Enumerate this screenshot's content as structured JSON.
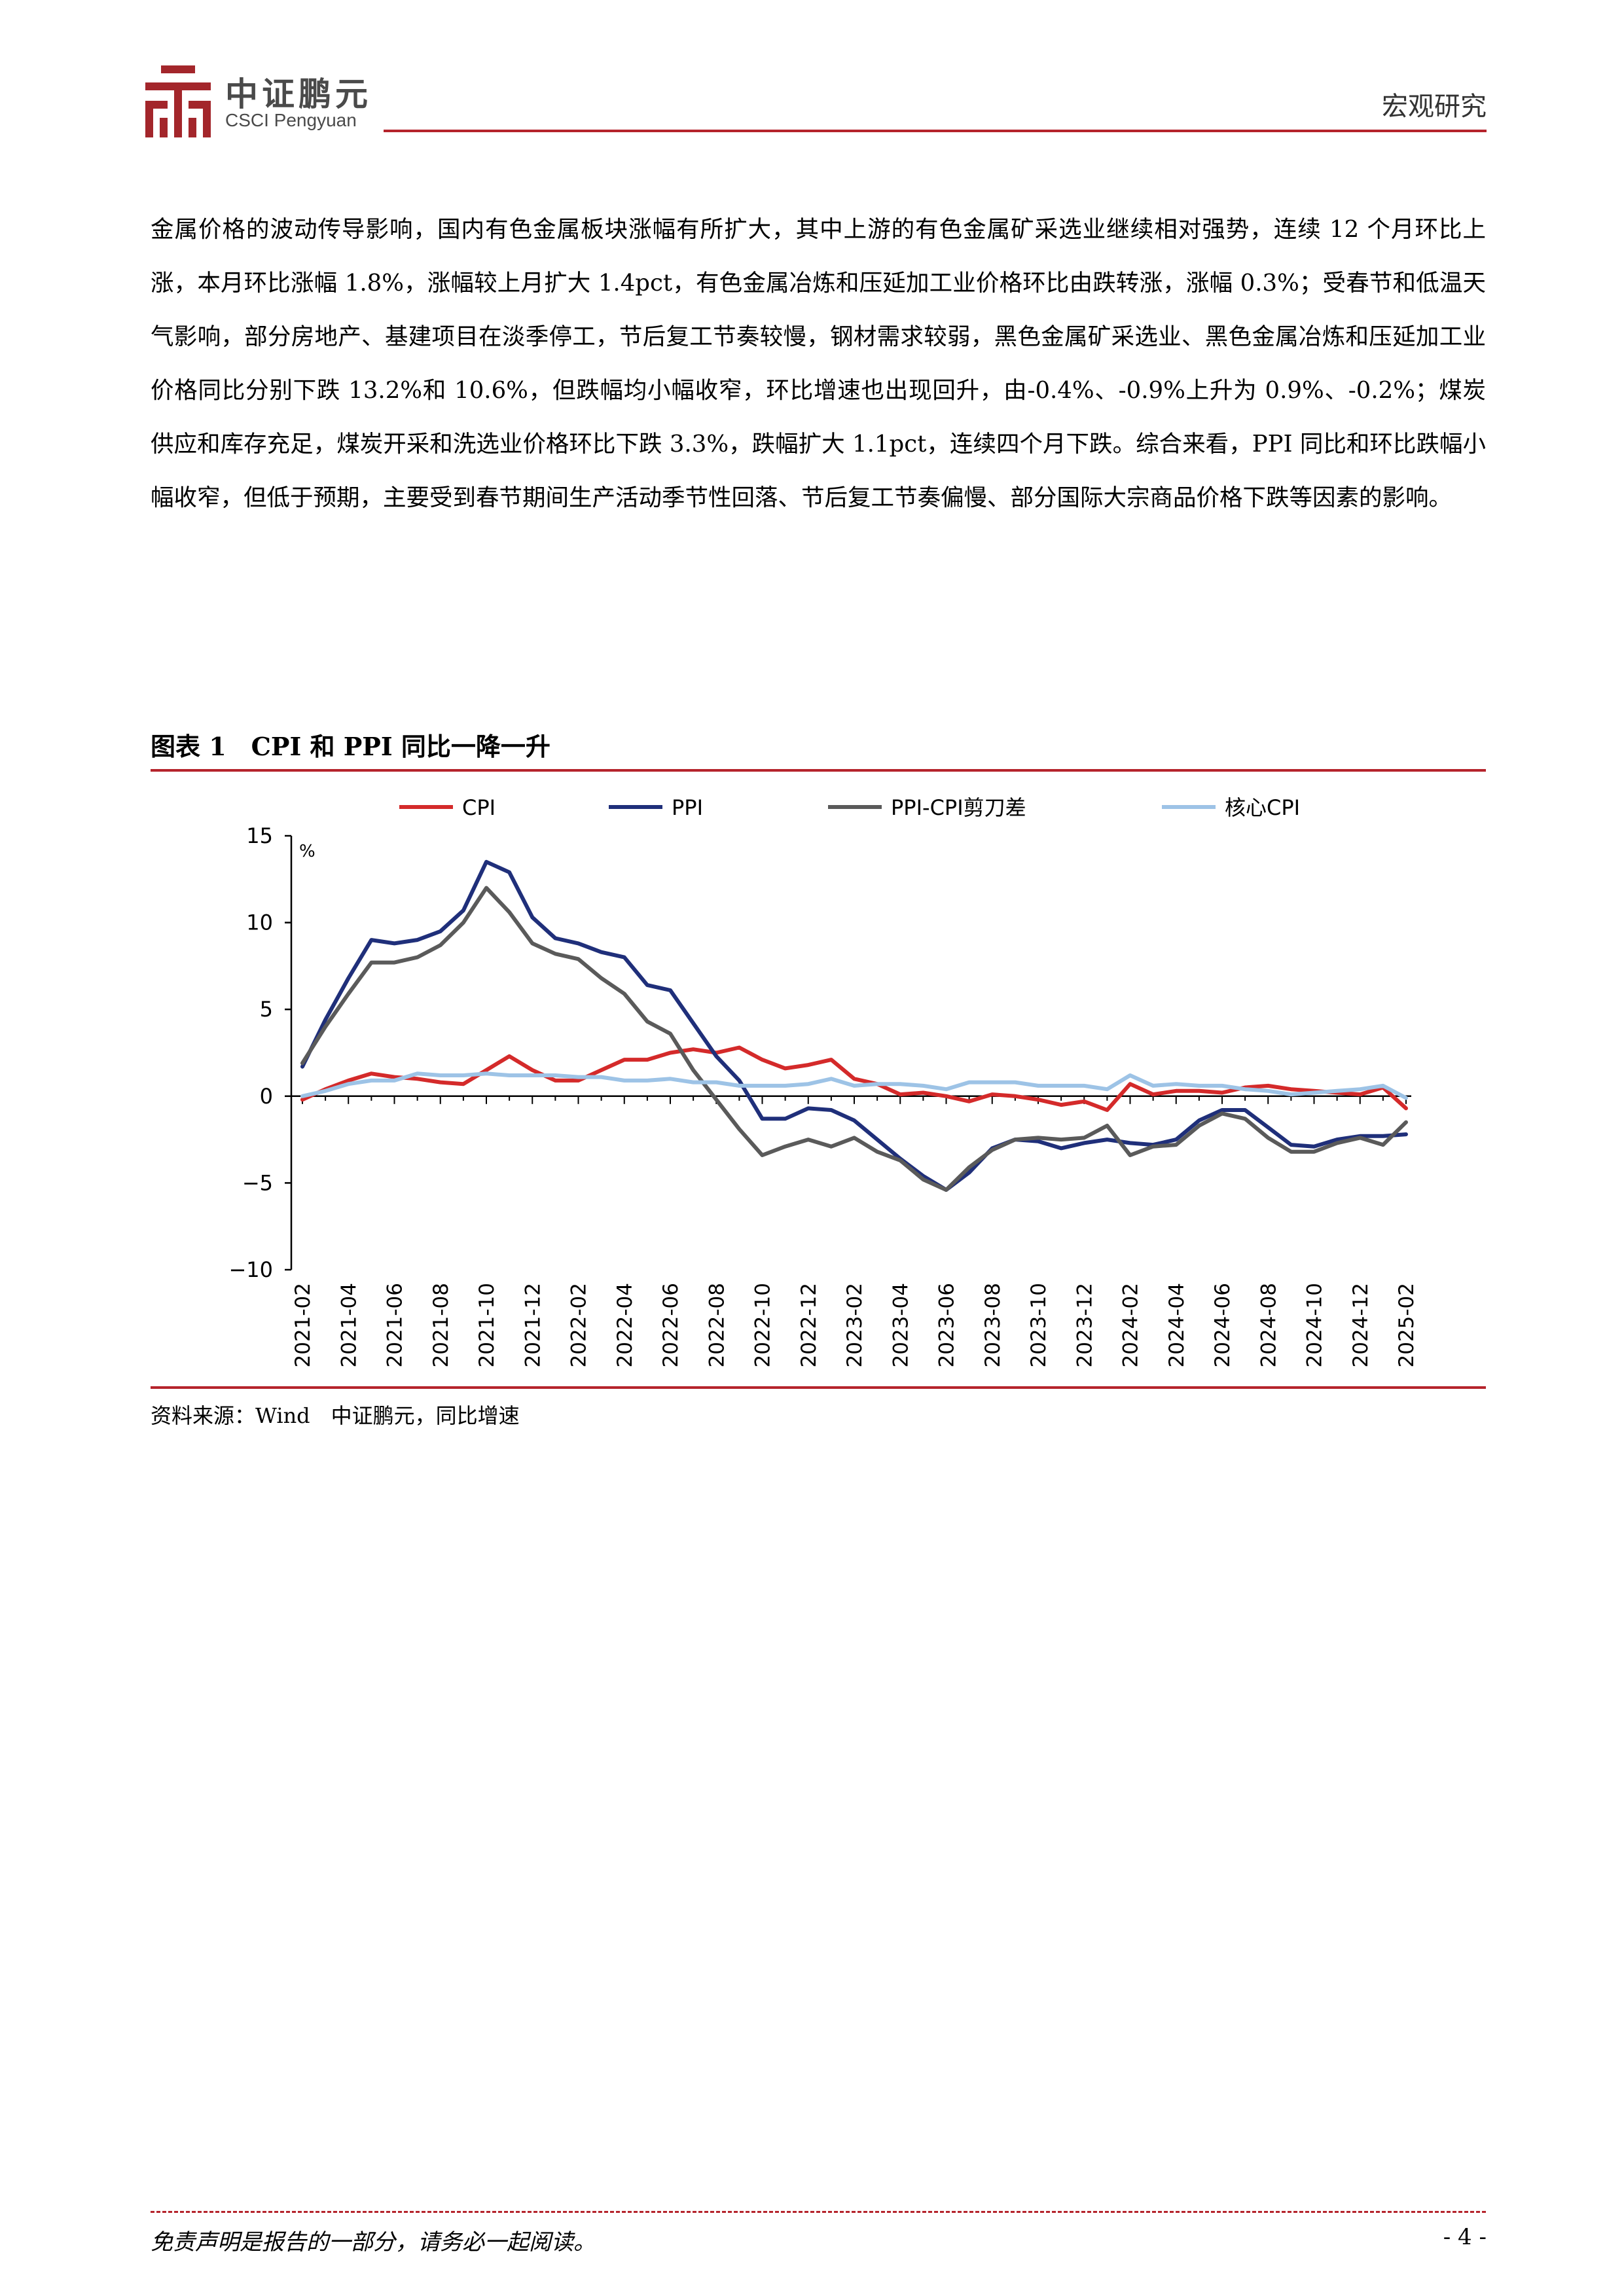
{
  "header": {
    "logo_cn": "中证鹏元",
    "logo_en": "CSCI Pengyuan",
    "section_label": "宏观研究"
  },
  "body": {
    "paragraph": "金属价格的波动传导影响，国内有色金属板块涨幅有所扩大，其中上游的有色金属矿采选业继续相对强势，连续 12 个月环比上涨，本月环比涨幅 1.8%，涨幅较上月扩大 1.4pct，有色金属冶炼和压延加工业价格环比由跌转涨，涨幅 0.3%；受春节和低温天气影响，部分房地产、基建项目在淡季停工，节后复工节奏较慢，钢材需求较弱，黑色金属矿采选业、黑色金属冶炼和压延加工业价格同比分别下跌 13.2%和 10.6%，但跌幅均小幅收窄，环比增速也出现回升，由-0.4%、-0.9%上升为 0.9%、-0.2%；煤炭供应和库存充足，煤炭开采和洗选业价格环比下跌 3.3%，跌幅扩大 1.1pct，连续四个月下跌。综合来看，PPI 同比和环比跌幅小幅收窄，但低于预期，主要受到春节期间生产活动季节性回落、节后复工节奏偏慢、部分国际大宗商品价格下跌等因素的影响。"
  },
  "figure": {
    "title": "图表 1　CPI 和 PPI 同比一降一升",
    "source": "资料来源：Wind　中证鹏元，同比增速"
  },
  "chart_data": {
    "type": "line",
    "unit_label": "%",
    "ylim": [
      -10,
      15
    ],
    "yticks": [
      15,
      10,
      5,
      0,
      -5,
      -10
    ],
    "x_tick_labels": [
      "2021-02",
      "2021-04",
      "2021-06",
      "2021-08",
      "2021-10",
      "2021-12",
      "2022-02",
      "2022-04",
      "2022-06",
      "2022-08",
      "2022-10",
      "2022-12",
      "2023-02",
      "2023-04",
      "2023-06",
      "2023-08",
      "2023-10",
      "2023-12",
      "2024-02",
      "2024-04",
      "2024-06",
      "2024-08",
      "2024-10",
      "2024-12",
      "2025-02"
    ],
    "legend_position": "top",
    "categories": [
      "2021-02",
      "2021-03",
      "2021-04",
      "2021-05",
      "2021-06",
      "2021-07",
      "2021-08",
      "2021-09",
      "2021-10",
      "2021-11",
      "2021-12",
      "2022-01",
      "2022-02",
      "2022-03",
      "2022-04",
      "2022-05",
      "2022-06",
      "2022-07",
      "2022-08",
      "2022-09",
      "2022-10",
      "2022-11",
      "2022-12",
      "2023-01",
      "2023-02",
      "2023-03",
      "2023-04",
      "2023-05",
      "2023-06",
      "2023-07",
      "2023-08",
      "2023-09",
      "2023-10",
      "2023-11",
      "2023-12",
      "2024-01",
      "2024-02",
      "2024-03",
      "2024-04",
      "2024-05",
      "2024-06",
      "2024-07",
      "2024-08",
      "2024-09",
      "2024-10",
      "2024-11",
      "2024-12",
      "2025-01",
      "2025-02"
    ],
    "series": [
      {
        "name": "CPI",
        "color": "#d42a2a",
        "values": [
          -0.2,
          0.4,
          0.9,
          1.3,
          1.1,
          1.0,
          0.8,
          0.7,
          1.5,
          2.3,
          1.5,
          0.9,
          0.9,
          1.5,
          2.1,
          2.1,
          2.5,
          2.7,
          2.5,
          2.8,
          2.1,
          1.6,
          1.8,
          2.1,
          1.0,
          0.7,
          0.1,
          0.2,
          0.0,
          -0.3,
          0.1,
          0.0,
          -0.2,
          -0.5,
          -0.3,
          -0.8,
          0.7,
          0.1,
          0.3,
          0.3,
          0.2,
          0.5,
          0.6,
          0.4,
          0.3,
          0.2,
          0.1,
          0.5,
          -0.7
        ]
      },
      {
        "name": "PPI",
        "color": "#1f2f7a",
        "values": [
          1.7,
          4.4,
          6.8,
          9.0,
          8.8,
          9.0,
          9.5,
          10.7,
          13.5,
          12.9,
          10.3,
          9.1,
          8.8,
          8.3,
          8.0,
          6.4,
          6.1,
          4.2,
          2.3,
          0.9,
          -1.3,
          -1.3,
          -0.7,
          -0.8,
          -1.4,
          -2.5,
          -3.6,
          -4.6,
          -5.4,
          -4.4,
          -3.0,
          -2.5,
          -2.6,
          -3.0,
          -2.7,
          -2.5,
          -2.7,
          -2.8,
          -2.5,
          -1.4,
          -0.8,
          -0.8,
          -1.8,
          -2.8,
          -2.9,
          -2.5,
          -2.3,
          -2.3,
          -2.2
        ]
      },
      {
        "name": "PPI-CPI剪刀差",
        "color": "#5a5a5a",
        "values": [
          1.9,
          4.0,
          5.9,
          7.7,
          7.7,
          8.0,
          8.7,
          10.0,
          12.0,
          10.6,
          8.8,
          8.2,
          7.9,
          6.8,
          5.9,
          4.3,
          3.6,
          1.5,
          -0.2,
          -1.9,
          -3.4,
          -2.9,
          -2.5,
          -2.9,
          -2.4,
          -3.2,
          -3.7,
          -4.8,
          -5.4,
          -4.1,
          -3.1,
          -2.5,
          -2.4,
          -2.5,
          -2.4,
          -1.7,
          -3.4,
          -2.9,
          -2.8,
          -1.7,
          -1.0,
          -1.3,
          -2.4,
          -3.2,
          -3.2,
          -2.7,
          -2.4,
          -2.8,
          -1.5
        ]
      },
      {
        "name": "核心CPI",
        "color": "#9dc3e6",
        "values": [
          0.0,
          0.3,
          0.7,
          0.9,
          0.9,
          1.3,
          1.2,
          1.2,
          1.3,
          1.2,
          1.2,
          1.2,
          1.1,
          1.1,
          0.9,
          0.9,
          1.0,
          0.8,
          0.8,
          0.6,
          0.6,
          0.6,
          0.7,
          1.0,
          0.6,
          0.7,
          0.7,
          0.6,
          0.4,
          0.8,
          0.8,
          0.8,
          0.6,
          0.6,
          0.6,
          0.4,
          1.2,
          0.6,
          0.7,
          0.6,
          0.6,
          0.4,
          0.3,
          0.1,
          0.2,
          0.3,
          0.4,
          0.6,
          -0.1
        ]
      }
    ]
  },
  "footer": {
    "disclaimer": "免责声明是报告的一部分，请务必一起阅读。",
    "page_number": "- 4 -"
  }
}
